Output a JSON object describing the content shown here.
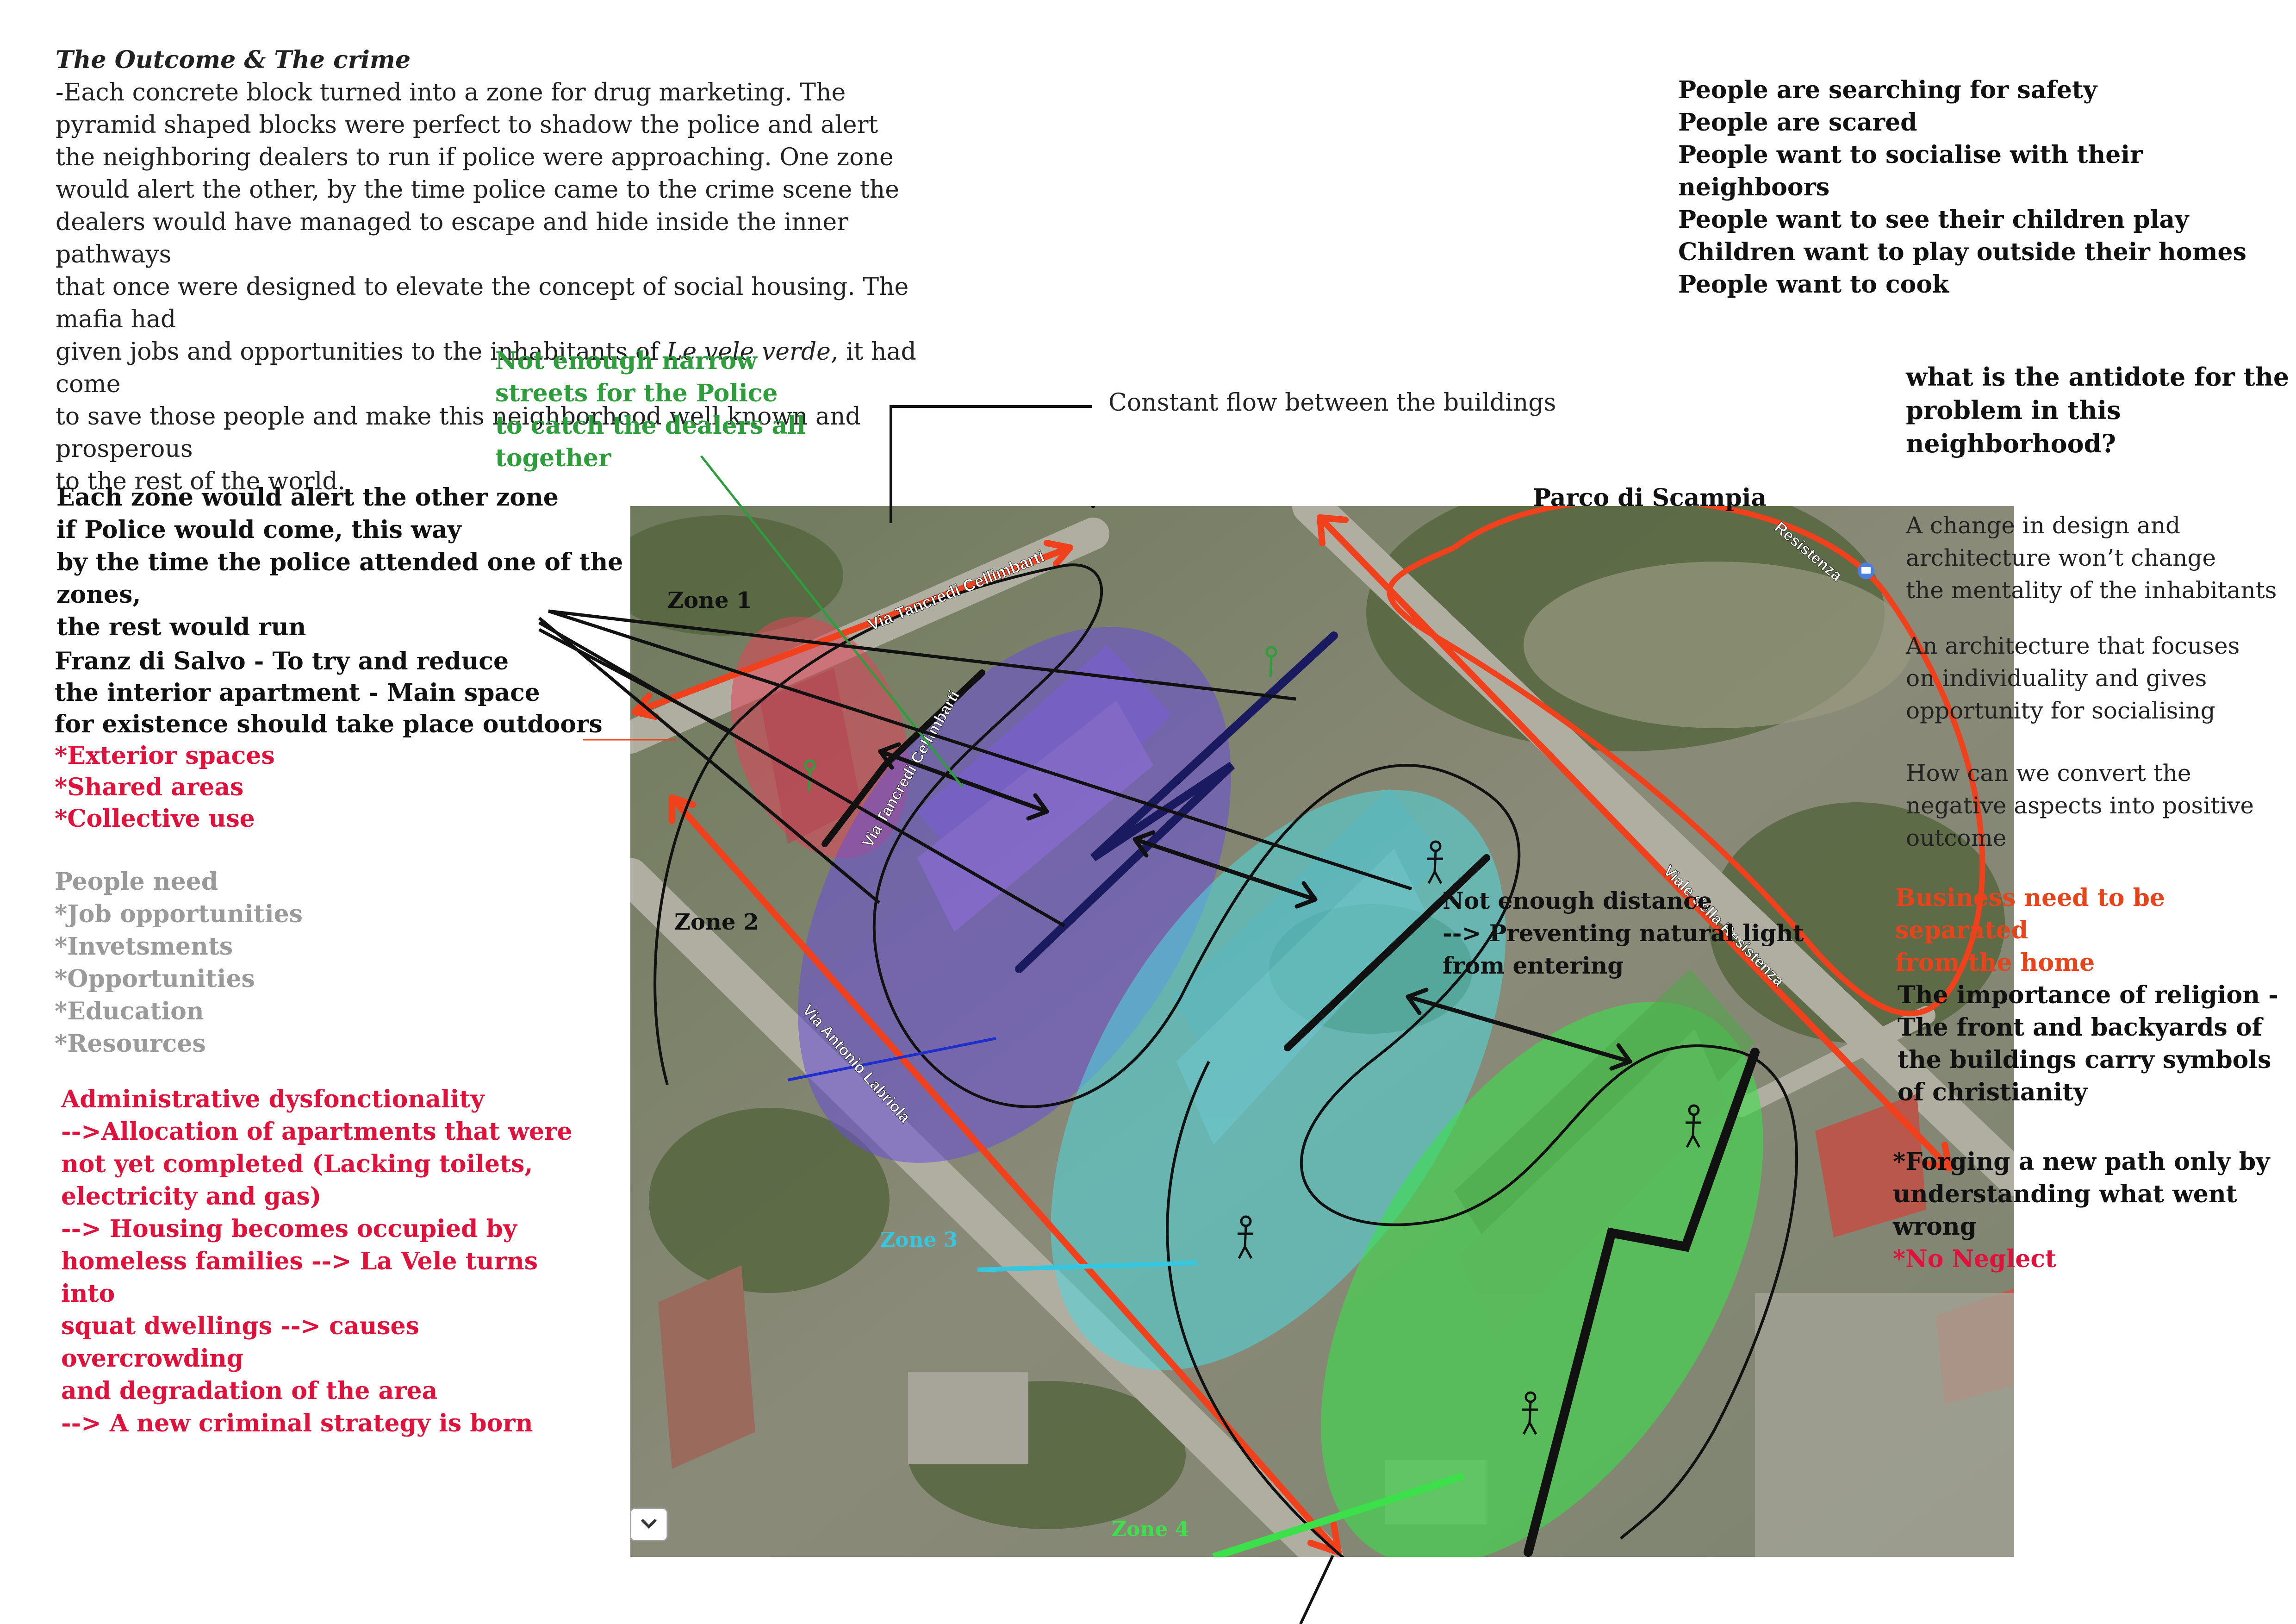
{
  "outcome": {
    "title": "The Outcome & The crime",
    "body": "-Each concrete block turned into a zone for drug marketing. The\npyramid shaped blocks were perfect to shadow the police and alert\nthe neighboring dealers to run if police were approaching. One zone\nwould alert the other, by the time police came to the crime scene the\ndealers would have managed to escape and hide inside the inner pathways\nthat once were designed to elevate the concept of social housing. The mafia had\ngiven jobs and opportunities to the inhabitants of ",
    "italic_name": "Le vele verde",
    "body_end": ", it had come\nto save those people and make this neighborhood well known and prosperous\nto the rest of the world."
  },
  "people_statements": [
    "People are searching for safety",
    "People are scared",
    "People want to socialise with their neighboors",
    "People want to see their children play",
    "Children want to play outside their homes",
    "People want to cook"
  ],
  "police_note": "Not enough narrow\nstreets for the Police\nto catch the dealers all together",
  "flow_note": "Constant flow between the buildings",
  "antidote": "what is the antidote for the\nproblem in this neighborhood?",
  "alert_note": "Each zone would alert the other zone\nif Police would come, this way\nby the time the police attended one of the zones,\nthe rest would run",
  "franz": {
    "text": "Franz di Salvo - To try and reduce\nthe interior apartment - Main space\nfor existence should take place outdoors",
    "red_items": [
      "*Exterior spaces",
      "*Shared areas",
      "*Collective use"
    ]
  },
  "people_need": {
    "title": "People need",
    "items": [
      "*Job opportunities",
      "*Invetsments",
      "*Opportunities",
      "*Education",
      "*Resources"
    ]
  },
  "admin_note": "Administrative dysfonctionality\n-->Allocation of apartments that were\nnot yet completed (Lacking toilets,\nelectricity and gas)\n--> Housing becomes occupied by\nhomeless families --> La Vele turns into\nsquat dwellings --> causes overcrowding\nand degradation of the area\n--> A new criminal strategy is born",
  "right_notes": {
    "change": "A change in design and\narchitecture won’t change\nthe mentality of the inhabitants",
    "focus": "An architecture that focuses\non individuality and gives\nopportunity for socialising",
    "convert": "How can we convert the\nnegative aspects into positive\noutcome",
    "business": "Business need to be separated\nfrom the home",
    "religion": "The importance of religion -\nThe front and backyards of\nthe buildings carry symbols\nof christianity",
    "forging": "*Forging a new path only by\nunderstanding what went wrong",
    "neglect": "*No Neglect"
  },
  "map": {
    "park_label": "Parco di Scampia",
    "distance_note": "Not enough distance\n--> Preventing natural light\nfrom entering",
    "zones": [
      "Zone 1",
      "Zone 2",
      "Zone 3",
      "Zone 4"
    ],
    "streets": [
      "Via Tancredi Cellimbarti",
      "Via Tancredi Cellimbarti",
      "Via Antonio Labriola",
      "Viale della Resistenza",
      "Resistenza"
    ],
    "colors": {
      "zone1": "#e2445a",
      "zone2": "#6a4fd8",
      "zone3": "#4fd9e0",
      "zone4": "#3ce04a",
      "red_arrow": "#f0401c",
      "green_line": "#2e9d3c"
    },
    "icons": [
      "person-icon",
      "mail-icon",
      "chevron-down-icon"
    ]
  }
}
